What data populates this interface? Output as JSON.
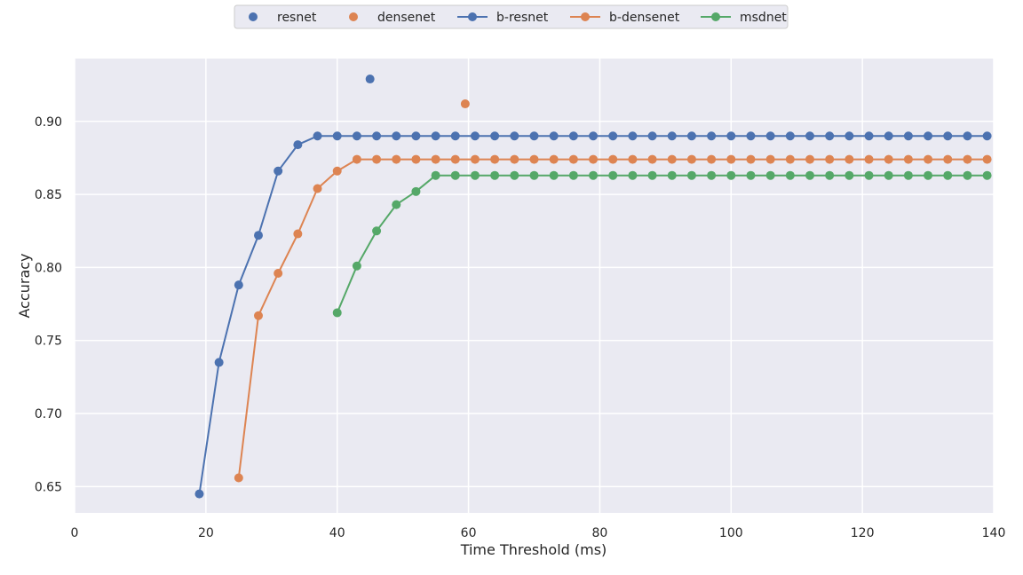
{
  "chart_data": {
    "type": "line",
    "xlabel": "Time Threshold (ms)",
    "ylabel": "Accuracy",
    "xlim": [
      0,
      140
    ],
    "ylim": [
      0.632,
      0.943
    ],
    "xticks": [
      0,
      20,
      40,
      60,
      80,
      100,
      120,
      140
    ],
    "yticks": [
      0.65,
      0.7,
      0.75,
      0.8,
      0.85,
      0.9
    ],
    "ytick_labels": [
      "0.65",
      "0.70",
      "0.75",
      "0.80",
      "0.85",
      "0.90"
    ],
    "grid": true,
    "legend_position": "top-center",
    "series": [
      {
        "name": "resnet",
        "style": "scatter",
        "color": "#4c72b0",
        "x": [
          45
        ],
        "y": [
          0.929
        ]
      },
      {
        "name": "densenet",
        "style": "scatter",
        "color": "#dd8452",
        "x": [
          59.5
        ],
        "y": [
          0.912
        ]
      },
      {
        "name": "b-resnet",
        "style": "line",
        "color": "#4c72b0",
        "x": [
          19,
          22,
          25,
          28,
          31,
          34,
          37,
          40,
          43,
          46,
          49,
          52,
          55,
          58,
          61,
          64,
          67,
          70,
          73,
          76,
          79,
          82,
          85,
          88,
          91,
          94,
          97,
          100,
          103,
          106,
          109,
          112,
          115,
          118,
          121,
          124,
          127,
          130,
          133,
          136,
          139
        ],
        "y": [
          0.645,
          0.735,
          0.788,
          0.822,
          0.866,
          0.884,
          0.89,
          0.89,
          0.89,
          0.89,
          0.89,
          0.89,
          0.89,
          0.89,
          0.89,
          0.89,
          0.89,
          0.89,
          0.89,
          0.89,
          0.89,
          0.89,
          0.89,
          0.89,
          0.89,
          0.89,
          0.89,
          0.89,
          0.89,
          0.89,
          0.89,
          0.89,
          0.89,
          0.89,
          0.89,
          0.89,
          0.89,
          0.89,
          0.89,
          0.89,
          0.89
        ]
      },
      {
        "name": "b-densenet",
        "style": "line",
        "color": "#dd8452",
        "x": [
          25,
          28,
          31,
          34,
          37,
          40,
          43,
          46,
          49,
          52,
          55,
          58,
          61,
          64,
          67,
          70,
          73,
          76,
          79,
          82,
          85,
          88,
          91,
          94,
          97,
          100,
          103,
          106,
          109,
          112,
          115,
          118,
          121,
          124,
          127,
          130,
          133,
          136,
          139
        ],
        "y": [
          0.656,
          0.767,
          0.796,
          0.823,
          0.854,
          0.866,
          0.874,
          0.874,
          0.874,
          0.874,
          0.874,
          0.874,
          0.874,
          0.874,
          0.874,
          0.874,
          0.874,
          0.874,
          0.874,
          0.874,
          0.874,
          0.874,
          0.874,
          0.874,
          0.874,
          0.874,
          0.874,
          0.874,
          0.874,
          0.874,
          0.874,
          0.874,
          0.874,
          0.874,
          0.874,
          0.874,
          0.874,
          0.874,
          0.874
        ]
      },
      {
        "name": "msdnet",
        "style": "line",
        "color": "#55a868",
        "x": [
          40,
          43,
          46,
          49,
          52,
          55,
          58,
          61,
          64,
          67,
          70,
          73,
          76,
          79,
          82,
          85,
          88,
          91,
          94,
          97,
          100,
          103,
          106,
          109,
          112,
          115,
          118,
          121,
          124,
          127,
          130,
          133,
          136,
          139
        ],
        "y": [
          0.769,
          0.801,
          0.825,
          0.843,
          0.852,
          0.863,
          0.863,
          0.863,
          0.863,
          0.863,
          0.863,
          0.863,
          0.863,
          0.863,
          0.863,
          0.863,
          0.863,
          0.863,
          0.863,
          0.863,
          0.863,
          0.863,
          0.863,
          0.863,
          0.863,
          0.863,
          0.863,
          0.863,
          0.863,
          0.863,
          0.863,
          0.863,
          0.863,
          0.863
        ]
      }
    ]
  }
}
